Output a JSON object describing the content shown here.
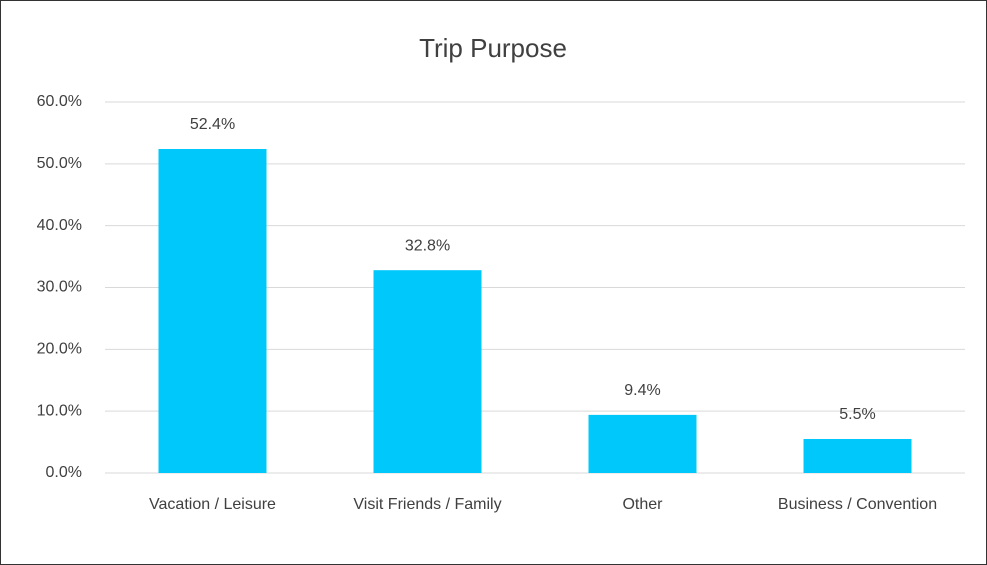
{
  "chart_data": {
    "type": "bar",
    "title": "Trip Purpose",
    "categories": [
      "Vacation / Leisure",
      "Visit Friends / Family",
      "Other",
      "Business / Convention"
    ],
    "values": [
      52.4,
      32.8,
      9.4,
      5.5
    ],
    "value_labels": [
      "52.4%",
      "32.8%",
      "9.4%",
      "5.5%"
    ],
    "color": "#00c8fa",
    "ylim": [
      0,
      60
    ],
    "yticks": [
      {
        "value": 0,
        "label": "0.0%"
      },
      {
        "value": 10,
        "label": "10.0%"
      },
      {
        "value": 20,
        "label": "20.0%"
      },
      {
        "value": 30,
        "label": "30.0%"
      },
      {
        "value": 40,
        "label": "40.0%"
      },
      {
        "value": 50,
        "label": "50.0%"
      },
      {
        "value": 60,
        "label": "60.0%"
      }
    ],
    "grid": true
  }
}
